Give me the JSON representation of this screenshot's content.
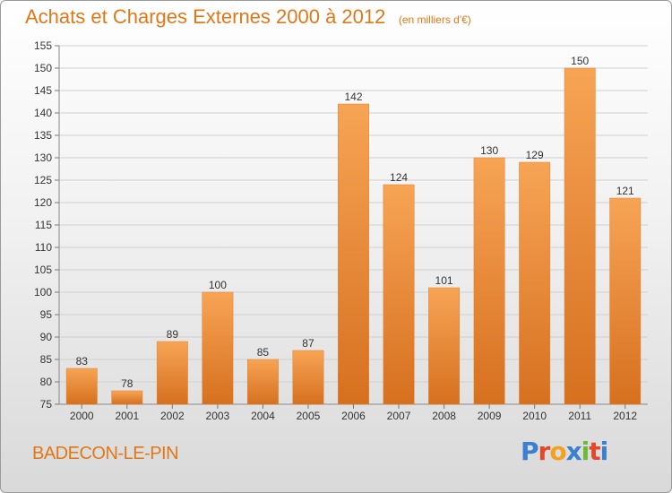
{
  "title": "Achats et Charges Externes 2000 à 2012",
  "unit_note": "(en milliers d'€)",
  "city": "BADECON-LE-PIN",
  "logo": {
    "text": "Proxiti",
    "letter_colors": [
      "#3a7fd0",
      "#e0492a",
      "#f2a21e",
      "#3a7fd0",
      "#6cbb34",
      "#e0492a",
      "#3a7fd0"
    ]
  },
  "colors": {
    "bar_top": "#f7a455",
    "bar_bottom": "#d6701f",
    "bar_edge": "#e08130",
    "accent": "#e07818",
    "text": "#333333"
  },
  "chart_data": {
    "type": "bar",
    "title": "Achats et Charges Externes 2000 à 2012",
    "subtitle": "(en milliers d'€)",
    "categories": [
      "2000",
      "2001",
      "2002",
      "2003",
      "2004",
      "2005",
      "2006",
      "2007",
      "2008",
      "2009",
      "2010",
      "2011",
      "2012"
    ],
    "values": [
      83,
      78,
      89,
      100,
      85,
      87,
      142,
      124,
      101,
      130,
      129,
      150,
      121
    ],
    "ylim": [
      75,
      155
    ],
    "yticks": [
      75,
      80,
      85,
      90,
      95,
      100,
      105,
      110,
      115,
      120,
      125,
      130,
      135,
      140,
      145,
      150,
      155
    ],
    "grid": true
  }
}
